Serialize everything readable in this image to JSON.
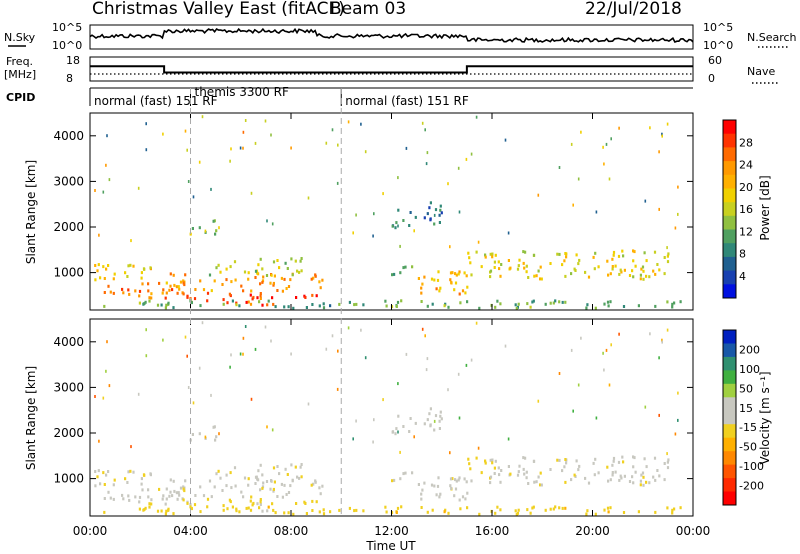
{
  "header": {
    "title": "Christmas Valley East (fitACF)",
    "beam": "Beam 03",
    "date": "22/Jul/2018"
  },
  "nsky_panel": {
    "left_label": "N.Sky",
    "left_ticks": [
      "10^5",
      "10^0"
    ],
    "right_ticks": [
      "10^5",
      "10^0"
    ],
    "right_label": "N.Search"
  },
  "freq_panel": {
    "left_label_1": "Freq.",
    "left_label_2": "[MHz]",
    "left_ticks": [
      "18",
      "8"
    ],
    "right_ticks": [
      "60",
      "0"
    ],
    "right_label": "Nave"
  },
  "cpid": {
    "label": "CPID",
    "segments": [
      {
        "text": "normal (fast) 151 RF",
        "start_hour": 0
      },
      {
        "text": "themis 3300 RF",
        "start_hour": 4
      },
      {
        "text": "normal (fast) 151 RF",
        "start_hour": 10
      }
    ]
  },
  "power_panel": {
    "ylabel": "Slant Range [km]",
    "cbar_label": "Power [dB]",
    "cbar_ticks": [
      "28",
      "24",
      "20",
      "16",
      "12",
      "8",
      "4"
    ],
    "cbar_colors": [
      "#ff0000",
      "#ff3300",
      "#ff6a00",
      "#ff9900",
      "#ffb000",
      "#f0d000",
      "#c8d020",
      "#90c040",
      "#50a060",
      "#308878",
      "#206090",
      "#1840b0",
      "#0010e0"
    ]
  },
  "velocity_panel": {
    "ylabel": "Slant Range [km]",
    "cbar_label": "Velocity [m s⁻¹]",
    "cbar_ticks": [
      "200",
      "100",
      "50",
      "15",
      "-15",
      "-50",
      "-100",
      "-200"
    ],
    "cbar_colors": [
      "#0020c0",
      "#1858a8",
      "#309070",
      "#40b040",
      "#a0d040",
      "#c8c8c0",
      "#c8c8c0",
      "#f0d020",
      "#ffb000",
      "#ff8800",
      "#ff5500",
      "#ff2a00",
      "#ff0000"
    ]
  },
  "y_ticks": [
    "4000",
    "3000",
    "2000",
    "1000"
  ],
  "x_ticks": [
    "00:00",
    "04:00",
    "08:00",
    "12:00",
    "16:00",
    "20:00",
    "00:00"
  ],
  "xlabel": "Time UT",
  "chart_data": {
    "type": "heatmap",
    "x_range_hours": [
      0,
      24
    ],
    "y_range_km": [
      180,
      4500
    ],
    "freq_steps": [
      {
        "from_hour": 0,
        "to_hour": 2.95,
        "freq_mhz": 15
      },
      {
        "from_hour": 2.95,
        "to_hour": 15,
        "freq_mhz": 10.5
      },
      {
        "from_hour": 15,
        "to_hour": 24,
        "freq_mhz": 15
      }
    ],
    "nave_level": 15,
    "scatter_regions": [
      {
        "t0": 0,
        "t1": 3.0,
        "r0": 800,
        "r1": 1150,
        "power_db": 18,
        "velocity": -5
      },
      {
        "t0": 0,
        "t1": 4.0,
        "r0": 400,
        "r1": 800,
        "power_db": 24,
        "velocity": -5
      },
      {
        "t0": 3.0,
        "t1": 9.5,
        "r0": 550,
        "r1": 950,
        "power_db": 22,
        "velocity": -5
      },
      {
        "t0": 3.5,
        "t1": 9.0,
        "r0": 250,
        "r1": 520,
        "power_db": 27,
        "velocity": -30
      },
      {
        "t0": 4.5,
        "t1": 8.5,
        "r0": 900,
        "r1": 1300,
        "power_db": 14,
        "velocity": -5
      },
      {
        "t0": 3.8,
        "t1": 5.0,
        "r0": 1800,
        "r1": 2150,
        "power_db": 13,
        "velocity": 40
      },
      {
        "t0": 13.0,
        "t1": 15.0,
        "r0": 450,
        "r1": 1050,
        "power_db": 21,
        "velocity": -5
      },
      {
        "t0": 15.0,
        "t1": 23.0,
        "r0": 800,
        "r1": 1450,
        "power_db": 17,
        "velocity": -5
      },
      {
        "t0": 11.8,
        "t1": 12.8,
        "r0": 900,
        "r1": 1150,
        "power_db": 9,
        "velocity": -5
      },
      {
        "t0": 12.0,
        "t1": 14.0,
        "r0": 1950,
        "r1": 2500,
        "power_db": 6,
        "velocity": 0
      },
      {
        "t0": 0,
        "t1": 24,
        "r0": 180,
        "r1": 350,
        "power_db": 10,
        "velocity": -40
      }
    ]
  }
}
